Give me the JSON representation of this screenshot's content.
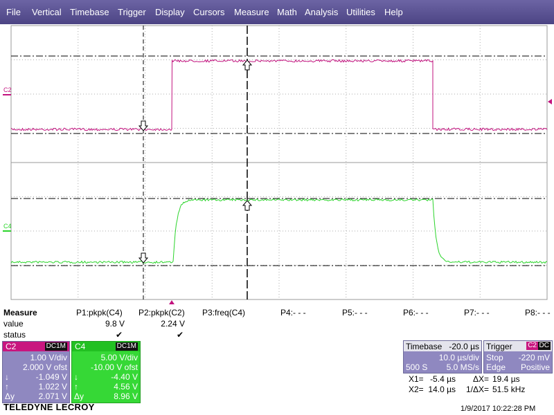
{
  "menu": [
    "File",
    "Vertical",
    "Timebase",
    "Trigger",
    "Display",
    "Cursors",
    "Measure",
    "Math",
    "Analysis",
    "Utilities",
    "Help"
  ],
  "trace_labels": [
    "C2",
    "C4"
  ],
  "measure": {
    "title": "Measure",
    "row_labels": [
      "value",
      "status"
    ],
    "params": [
      {
        "name": "P1:pkpk(C4)",
        "value": "9.8 V",
        "status": "✔"
      },
      {
        "name": "P2:pkpk(C2)",
        "value": "2.24 V",
        "status": "✔"
      },
      {
        "name": "P3:freq(C4)"
      },
      {
        "name": "P4:- - -"
      },
      {
        "name": "P5:- - -"
      },
      {
        "name": "P6:- - -"
      },
      {
        "name": "P7:- - -"
      },
      {
        "name": "P8:- - -"
      }
    ]
  },
  "channels": [
    {
      "name": "C2",
      "coupling": "DC1M",
      "scale": "1.00 V/div",
      "offset": "2.000 V ofst",
      "rows": [
        {
          "label": "↓",
          "value": "-1.049 V"
        },
        {
          "label": "↑",
          "value": "1.022 V"
        },
        {
          "label": "Δy",
          "value": "2.071 V"
        }
      ]
    },
    {
      "name": "C4",
      "coupling": "DC1M",
      "scale": "5.00 V/div",
      "offset": "-10.00 V ofst",
      "rows": [
        {
          "label": "↓",
          "value": "-4.40 V"
        },
        {
          "label": "↑",
          "value": "4.56 V"
        },
        {
          "label": "Δy",
          "value": "8.96 V"
        }
      ]
    }
  ],
  "timebase": {
    "title": "Timebase",
    "delay": "-20.0 µs",
    "scale": "10.0 µs/div",
    "samples": "500 S",
    "rate": "5.0 MS/s"
  },
  "trigger": {
    "title": "Trigger",
    "source": "C2",
    "coupling": "DC",
    "mode": "Stop",
    "level": "-220 mV",
    "type": "Edge",
    "slope": "Positive"
  },
  "cursors": [
    [
      {
        "label": "X1=",
        "value": "-5.4 µs"
      },
      {
        "label": "ΔX=",
        "value": "19.4 µs"
      }
    ],
    [
      {
        "label": "X2=",
        "value": "14.0 µs"
      },
      {
        "label": "1/ΔX=",
        "value": "51.5 kHz"
      }
    ]
  ],
  "footer": {
    "brand": "TELEDYNE LECROY",
    "timestamp": "1/9/2017 10:22:28 PM"
  }
}
